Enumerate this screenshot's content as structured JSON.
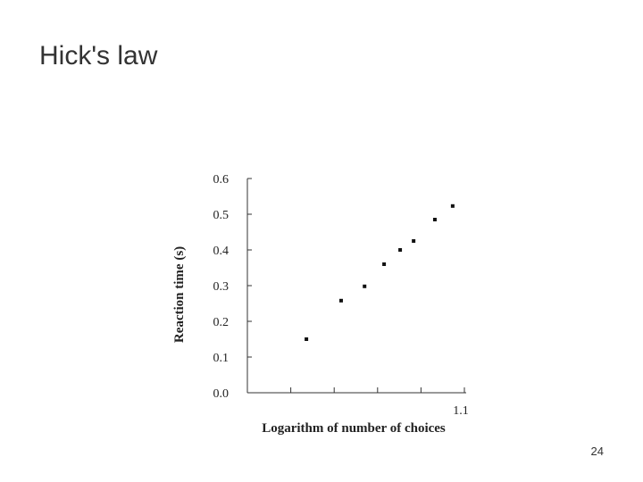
{
  "title": "Hick's law",
  "page_number": "24",
  "chart_data": {
    "type": "scatter",
    "x_label": "Logarithm of number of choices",
    "y_label": "Reaction time (s)",
    "xlim": [
      0.6,
      1.1
    ],
    "xticks": [
      1.1
    ],
    "minor_xticks": [
      0.7,
      0.8,
      0.9,
      1.0
    ],
    "ylim": [
      0,
      0.6
    ],
    "yticks": [
      {
        "value": 0,
        "label": "0.0"
      },
      0.1,
      0.2,
      0.3,
      0.4,
      0.5,
      0.6
    ],
    "color": "#111111",
    "x": [
      0.736,
      0.816,
      0.87,
      0.915,
      0.952,
      0.983,
      1.032,
      1.073
    ],
    "values": [
      0.15,
      0.258,
      0.298,
      0.36,
      0.4,
      0.425,
      0.485,
      0.523
    ]
  }
}
